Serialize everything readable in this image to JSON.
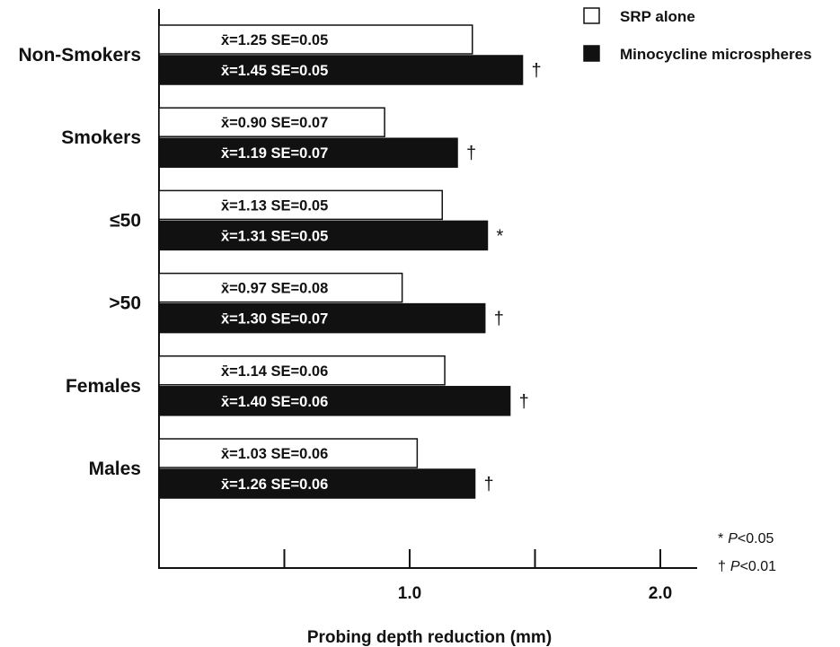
{
  "chart_data": {
    "type": "bar",
    "orientation": "horizontal",
    "categories": [
      "Non-Smokers",
      "Smokers",
      "≤50",
      ">50",
      "Females",
      "Males"
    ],
    "series": [
      {
        "name": "SRP alone",
        "color": "#ffffff",
        "values": [
          1.25,
          0.9,
          1.13,
          0.97,
          1.14,
          1.03
        ],
        "se": [
          0.05,
          0.07,
          0.05,
          0.08,
          0.06,
          0.06
        ],
        "labels": [
          "x̄=1.25 SE=0.05",
          "x̄=0.90 SE=0.07",
          "x̄=1.13 SE=0.05",
          "x̄=0.97 SE=0.08",
          "x̄=1.14 SE=0.06",
          "x̄=1.03 SE=0.06"
        ]
      },
      {
        "name": "Minocycline microspheres",
        "color": "#111111",
        "values": [
          1.45,
          1.19,
          1.31,
          1.3,
          1.4,
          1.26
        ],
        "se": [
          0.05,
          0.07,
          0.05,
          0.07,
          0.06,
          0.06
        ],
        "labels": [
          "x̄=1.45 SE=0.05",
          "x̄=1.19 SE=0.07",
          "x̄=1.31 SE=0.05",
          "x̄=1.30 SE=0.07",
          "x̄=1.40 SE=0.06",
          "x̄=1.26 SE=0.06"
        ],
        "significance": [
          "†",
          "†",
          "*",
          "†",
          "†",
          "†"
        ]
      }
    ],
    "xlabel": "Probing depth reduction (mm)",
    "xlim": [
      0,
      2.15
    ],
    "tick_values": [
      0.5,
      1.0,
      1.5,
      2.0
    ],
    "tick_labels": [
      "",
      "1.0",
      "",
      "2.0"
    ],
    "legend_position": "top-right",
    "footnotes": [
      {
        "symbol": "*",
        "label": "P",
        "text": "<0.05"
      },
      {
        "symbol": "†",
        "label": "P",
        "text": "<0.01"
      }
    ],
    "grid": false
  }
}
